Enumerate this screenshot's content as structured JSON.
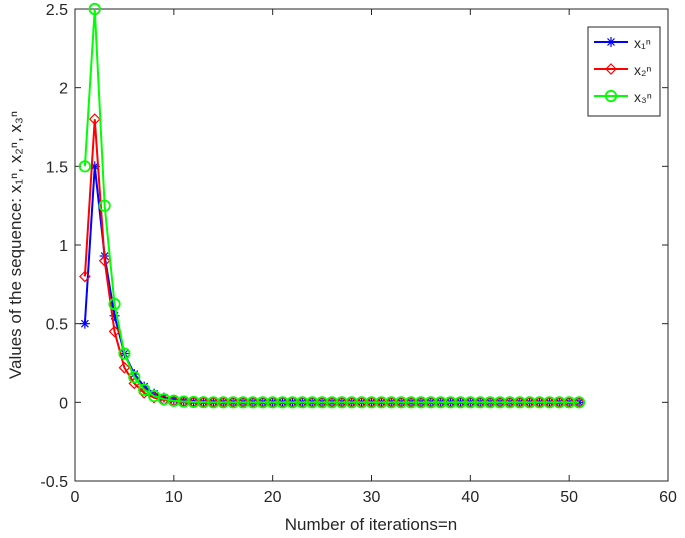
{
  "chart_data": {
    "type": "line",
    "title": "",
    "xlabel": "Number of iterations=n",
    "ylabel": "Values of the sequence: x₁ⁿ, x₂ⁿ, x₃ⁿ",
    "xlim": [
      0,
      60
    ],
    "ylim": [
      -0.5,
      2.5
    ],
    "xticks": [
      "0",
      "10",
      "20",
      "30",
      "40",
      "50",
      "60"
    ],
    "yticks": [
      "-0.5",
      "0",
      "0.5",
      "1",
      "1.5",
      "2",
      "2.5"
    ],
    "grid": false,
    "legend_position": "top-right",
    "x": [
      1,
      2,
      3,
      4,
      5,
      6,
      7,
      8,
      9,
      10,
      11,
      12,
      13,
      14,
      15,
      16,
      17,
      18,
      19,
      20,
      21,
      22,
      23,
      24,
      25,
      26,
      27,
      28,
      29,
      30,
      31,
      32,
      33,
      34,
      35,
      36,
      37,
      38,
      39,
      40,
      41,
      42,
      43,
      44,
      45,
      46,
      47,
      48,
      49,
      50,
      51
    ],
    "series": [
      {
        "name": "x₁ⁿ",
        "color": "#0000ff",
        "marker": "asterisk",
        "values": [
          0.5,
          1.5,
          0.93,
          0.55,
          0.31,
          0.18,
          0.1,
          0.055,
          0.03,
          0.016,
          0.008,
          0.004,
          0.002,
          0.001,
          0,
          0,
          0,
          0,
          0,
          0,
          0,
          0,
          0,
          0,
          0,
          0,
          0,
          0,
          0,
          0,
          0,
          0,
          0,
          0,
          0,
          0,
          0,
          0,
          0,
          0,
          0,
          0,
          0,
          0,
          0,
          0,
          0,
          0,
          0,
          0,
          0
        ]
      },
      {
        "name": "x₂ⁿ",
        "color": "#ff0000",
        "marker": "diamond",
        "values": [
          0.8,
          1.8,
          0.9,
          0.45,
          0.22,
          0.12,
          0.06,
          0.03,
          0.015,
          0.008,
          0.004,
          0.002,
          0.001,
          0,
          0,
          0,
          0,
          0,
          0,
          0,
          0,
          0,
          0,
          0,
          0,
          0,
          0,
          0,
          0,
          0,
          0,
          0,
          0,
          0,
          0,
          0,
          0,
          0,
          0,
          0,
          0,
          0,
          0,
          0,
          0,
          0,
          0,
          0,
          0,
          0,
          0
        ]
      },
      {
        "name": "x₃ⁿ",
        "color": "#00ff00",
        "marker": "circle",
        "values": [
          1.5,
          2.5,
          1.25,
          0.625,
          0.31,
          0.16,
          0.08,
          0.04,
          0.02,
          0.01,
          0.005,
          0.0025,
          0.001,
          0,
          0,
          0,
          0,
          0,
          0,
          0,
          0,
          0,
          0,
          0,
          0,
          0,
          0,
          0,
          0,
          0,
          0,
          0,
          0,
          0,
          0,
          0,
          0,
          0,
          0,
          0,
          0,
          0,
          0,
          0,
          0,
          0,
          0,
          0,
          0,
          0,
          0
        ]
      }
    ]
  }
}
